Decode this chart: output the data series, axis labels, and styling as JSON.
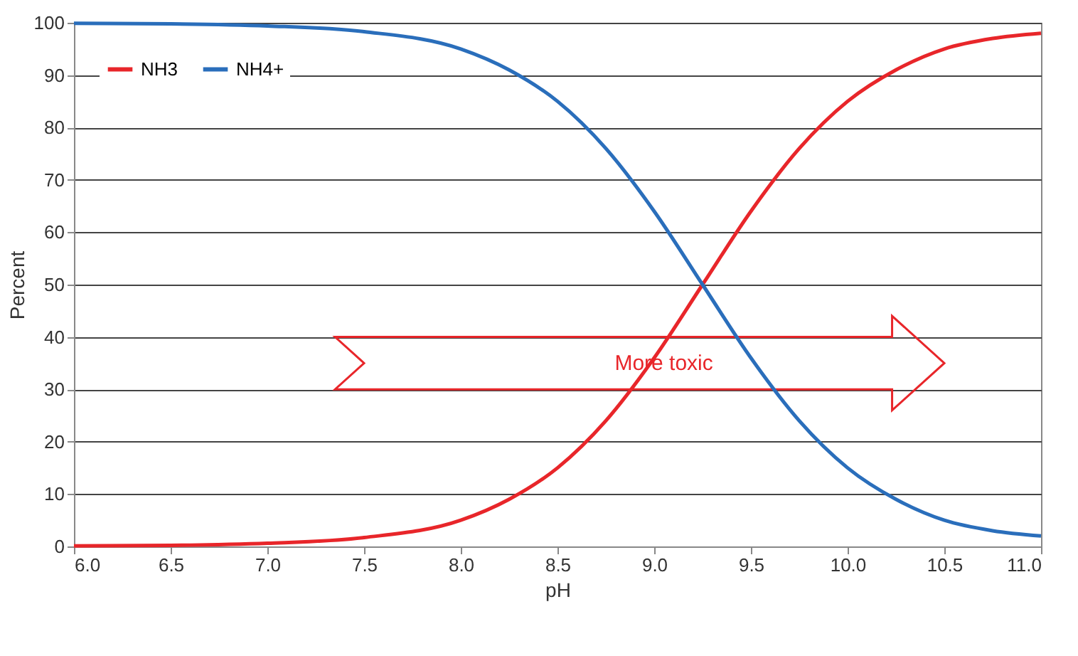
{
  "chart_data": {
    "type": "line",
    "xlabel": "pH",
    "ylabel": "Percent",
    "x": [
      6.0,
      6.5,
      7.0,
      7.5,
      8.0,
      8.25,
      8.5,
      8.75,
      9.0,
      9.25,
      9.5,
      9.75,
      10.0,
      10.25,
      10.5,
      10.75,
      11.0
    ],
    "series": [
      {
        "name": "NH3",
        "color": "#e8262a",
        "values": [
          0.1,
          0.2,
          0.6,
          1.7,
          5,
          9,
          15,
          24,
          36,
          50,
          64,
          76,
          85,
          91,
          95,
          97,
          98
        ]
      },
      {
        "name": "NH4+",
        "color": "#2a6ebb",
        "values": [
          99.9,
          99.8,
          99.4,
          98.3,
          95,
          91,
          85,
          76,
          64,
          50,
          36,
          24,
          15,
          9,
          5,
          3,
          2
        ]
      }
    ],
    "xlim": [
      6,
      11
    ],
    "xticks": [
      {
        "value": 6,
        "label": "6.0"
      },
      {
        "value": 6.5,
        "label": "6.5"
      },
      {
        "value": 7,
        "label": "7.0"
      },
      {
        "value": 7.5,
        "label": "7.5"
      },
      {
        "value": 8,
        "label": "8.0"
      },
      {
        "value": 8.5,
        "label": "8.5"
      },
      {
        "value": 9,
        "label": "9.0"
      },
      {
        "value": 9.5,
        "label": "9.5"
      },
      {
        "value": 10,
        "label": "10.0"
      },
      {
        "value": 10.5,
        "label": "10.5"
      },
      {
        "value": 11,
        "label": "11.0"
      }
    ],
    "ylim": [
      0,
      100
    ],
    "yticks": [
      0,
      10,
      20,
      30,
      40,
      50,
      60,
      70,
      80,
      90,
      100
    ],
    "grid": "y",
    "legend": "top left",
    "marker": "none",
    "line_style": "solid",
    "annotations": [
      "More toxic"
    ]
  }
}
